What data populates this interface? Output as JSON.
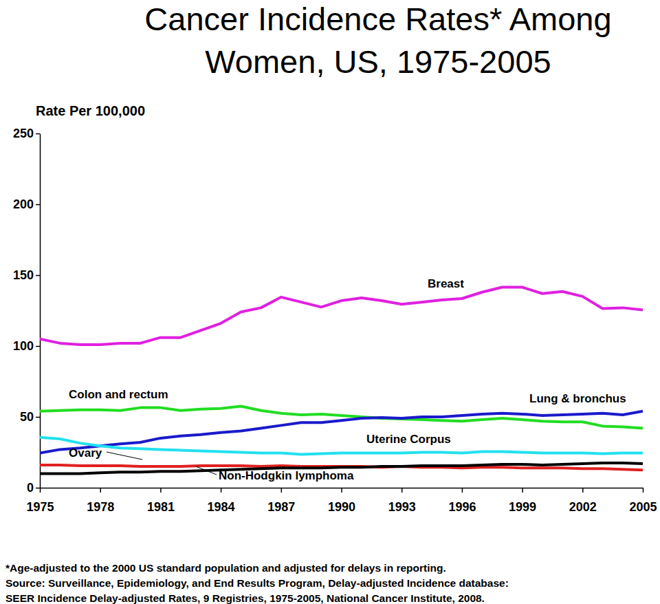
{
  "chart_data": {
    "type": "line",
    "title": [
      "Cancer Incidence Rates* Among",
      "Women, US, 1975-2005"
    ],
    "y_label": "Rate Per 100,000",
    "notes": [
      "*Age-adjusted to the 2000 US standard population and adjusted for delays in reporting.",
      "Source: Surveillance, Epidemiology, and End Results Program, Delay-adjusted Incidence database:",
      "SEER Incidence Delay-adjusted Rates, 9 Registries, 1975-2005, National Cancer Institute, 2008."
    ],
    "x": [
      1975,
      1976,
      1977,
      1978,
      1979,
      1980,
      1981,
      1982,
      1983,
      1984,
      1985,
      1986,
      1987,
      1988,
      1989,
      1990,
      1991,
      1992,
      1993,
      1994,
      1995,
      1996,
      1997,
      1998,
      1999,
      2000,
      2001,
      2002,
      2003,
      2004,
      2005
    ],
    "xlim": [
      1975,
      2005
    ],
    "xticks": [
      1975,
      1978,
      1981,
      1984,
      1987,
      1990,
      1993,
      1996,
      1999,
      2002,
      2005
    ],
    "ylim": [
      0,
      250
    ],
    "yticks": [
      0,
      50,
      100,
      150,
      200,
      250
    ],
    "grid": false,
    "series": [
      {
        "name": "Breast",
        "color": "#e020e0",
        "values": [
          105,
          102,
          101,
          101,
          102,
          102,
          106,
          106,
          111,
          116,
          124,
          127,
          134.5,
          131,
          127.5,
          132,
          134,
          132,
          129.5,
          131,
          132.5,
          133.5,
          138,
          141.5,
          141.5,
          137,
          138.5,
          135,
          126.5,
          127,
          125.5
        ]
      },
      {
        "name": "Colon and rectum",
        "color": "#22dd22",
        "values": [
          54,
          54.5,
          55,
          55,
          54.5,
          56.5,
          56.5,
          54.5,
          55.5,
          56,
          57.5,
          54.5,
          52.5,
          51.5,
          52,
          51,
          50,
          49,
          48.5,
          48,
          47.5,
          47,
          48,
          49,
          48,
          47,
          46.5,
          46.5,
          43.5,
          43,
          42
        ]
      },
      {
        "name": "Lung & bronchus",
        "color": "#1a1acc",
        "values": [
          24.5,
          27,
          28,
          29.5,
          31,
          32,
          35,
          36.5,
          37.5,
          39,
          40,
          42,
          44,
          46,
          46,
          47.5,
          49,
          49.5,
          49,
          50,
          50,
          51,
          52,
          52.5,
          52,
          51,
          51.5,
          52,
          52.5,
          51.5,
          54
        ]
      },
      {
        "name": "Uterine Corpus",
        "color": "#22e0f0",
        "values": [
          35.5,
          34.5,
          31.5,
          29.5,
          28,
          27.5,
          27,
          26.5,
          26,
          25.5,
          25,
          24.5,
          24.5,
          23.5,
          24,
          24.5,
          24.5,
          24.5,
          24.5,
          25,
          25,
          24.5,
          25.5,
          25.5,
          25,
          24.5,
          24.5,
          24.5,
          24,
          24.5,
          24.5
        ]
      },
      {
        "name": "Ovary",
        "color": "#e02020",
        "values": [
          16,
          16,
          15.5,
          15.5,
          15.5,
          15,
          15,
          15,
          15.5,
          15.5,
          15.5,
          15,
          15.5,
          15,
          15,
          15,
          15,
          14.5,
          15,
          14.5,
          14.5,
          14,
          14.5,
          14.5,
          14,
          14,
          14,
          13.5,
          13.5,
          13,
          12.5
        ]
      },
      {
        "name": "Non-Hodgkin lymphoma",
        "color": "#000000",
        "values": [
          10,
          10,
          10,
          10.5,
          11,
          11,
          11.5,
          11.5,
          12,
          12.5,
          13,
          13.5,
          14,
          14,
          14,
          14.5,
          14.5,
          15,
          15,
          15.5,
          15.5,
          15.5,
          16,
          16.5,
          16.5,
          16,
          16.5,
          17,
          17.5,
          17.5,
          17
        ]
      }
    ]
  }
}
